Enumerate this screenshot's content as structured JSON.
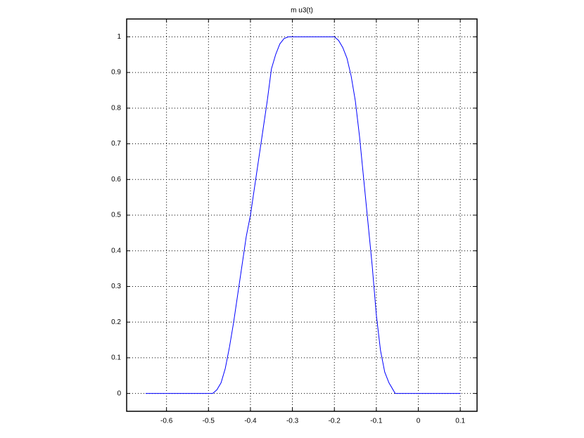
{
  "chart_data": {
    "type": "line",
    "title": "m u3(t)",
    "x": [
      -0.65,
      -0.6,
      -0.55,
      -0.5,
      -0.49,
      -0.48,
      -0.47,
      -0.46,
      -0.45,
      -0.44,
      -0.43,
      -0.42,
      -0.41,
      -0.4,
      -0.39,
      -0.38,
      -0.37,
      -0.36,
      -0.35,
      -0.34,
      -0.33,
      -0.32,
      -0.31,
      -0.3,
      -0.25,
      -0.2,
      -0.19,
      -0.18,
      -0.17,
      -0.16,
      -0.15,
      -0.14,
      -0.13,
      -0.12,
      -0.11,
      -0.1,
      -0.09,
      -0.08,
      -0.07,
      -0.06,
      -0.055,
      0,
      0.05,
      0.1
    ],
    "series": [
      {
        "name": "mu3",
        "color": "#0000ff",
        "values": [
          0,
          0,
          0,
          0,
          0,
          0.01,
          0.03,
          0.07,
          0.13,
          0.2,
          0.28,
          0.36,
          0.44,
          0.5,
          0.58,
          0.66,
          0.74,
          0.82,
          0.91,
          0.95,
          0.98,
          0.995,
          1,
          1,
          1,
          1,
          0.99,
          0.97,
          0.94,
          0.89,
          0.82,
          0.72,
          0.6,
          0.48,
          0.36,
          0.22,
          0.12,
          0.06,
          0.03,
          0.01,
          0,
          0,
          0,
          0
        ]
      }
    ],
    "xlim": [
      -0.695,
      0.14
    ],
    "ylim": [
      -0.05,
      1.05
    ],
    "xticks": [
      -0.6,
      -0.5,
      -0.4,
      -0.3,
      -0.2,
      -0.1,
      0,
      0.1
    ],
    "yticks": [
      0,
      0.1,
      0.2,
      0.3,
      0.4,
      0.5,
      0.6,
      0.7,
      0.8,
      0.9,
      1
    ],
    "grid": true
  }
}
